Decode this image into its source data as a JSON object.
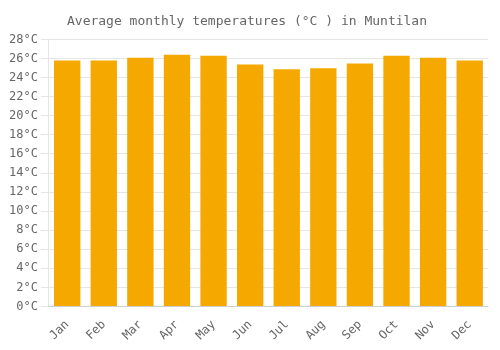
{
  "chart_data": {
    "type": "bar",
    "title": "Average monthly temperatures (°C ) in Muntilan",
    "categories": [
      "Jan",
      "Feb",
      "Mar",
      "Apr",
      "May",
      "Jun",
      "Jul",
      "Aug",
      "Sep",
      "Oct",
      "Nov",
      "Dec"
    ],
    "values": [
      25.8,
      25.8,
      26.1,
      26.4,
      26.3,
      25.4,
      24.9,
      25.0,
      25.5,
      26.3,
      26.1,
      25.8
    ],
    "color": "#F5A800",
    "ylim": [
      0,
      28
    ],
    "yticks": [
      {
        "value": 0,
        "label": "0°C"
      },
      {
        "value": 2,
        "label": "2°C"
      },
      {
        "value": 4,
        "label": "4°C"
      },
      {
        "value": 6,
        "label": "6°C"
      },
      {
        "value": 8,
        "label": "8°C"
      },
      {
        "value": 10,
        "label": "10°C"
      },
      {
        "value": 12,
        "label": "12°C"
      },
      {
        "value": 14,
        "label": "14°C"
      },
      {
        "value": 16,
        "label": "16°C"
      },
      {
        "value": 18,
        "label": "18°C"
      },
      {
        "value": 20,
        "label": "20°C"
      },
      {
        "value": 22,
        "label": "22°C"
      },
      {
        "value": 24,
        "label": "24°C"
      },
      {
        "value": 26,
        "label": "26°C"
      },
      {
        "value": 28,
        "label": "28°C"
      }
    ],
    "grid": true
  }
}
